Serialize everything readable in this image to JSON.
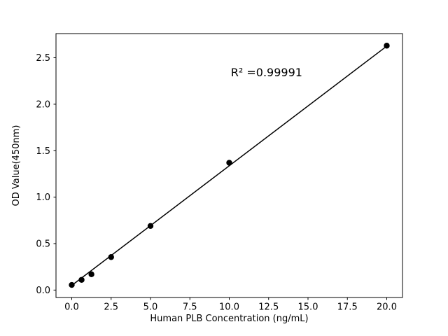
{
  "chart_data": {
    "type": "scatter",
    "title": "",
    "xlabel": "Human PLB Concentration (ng/mL)",
    "ylabel": "OD Value(450nm)",
    "points": {
      "x": [
        0,
        0.625,
        1.25,
        2.5,
        5,
        10,
        20
      ],
      "y": [
        0.055,
        0.11,
        0.17,
        0.355,
        0.69,
        1.37,
        2.63
      ]
    },
    "fit_line": {
      "x": [
        0,
        20
      ],
      "y": [
        0.05,
        2.625
      ]
    },
    "annotation": {
      "text": "R² =0.99991",
      "x": 10.1,
      "y": 2.3
    },
    "xlim": [
      -1,
      21
    ],
    "ylim": [
      -0.08,
      2.76
    ],
    "xticks": [
      0,
      2.5,
      5,
      7.5,
      10,
      12.5,
      15,
      17.5,
      20
    ],
    "xtick_labels": [
      "0.0",
      "2.5",
      "5.0",
      "7.5",
      "10.0",
      "12.5",
      "15.0",
      "17.5",
      "20.0"
    ],
    "yticks": [
      0,
      0.5,
      1,
      1.5,
      2,
      2.5
    ],
    "ytick_labels": [
      "0.0",
      "0.5",
      "1.0",
      "1.5",
      "2.0",
      "2.5"
    ],
    "grid": false,
    "legend": "none",
    "marker_color": "#000000",
    "line_color": "#000000",
    "spine_color": "#000000",
    "background_color": "#ffffff"
  }
}
